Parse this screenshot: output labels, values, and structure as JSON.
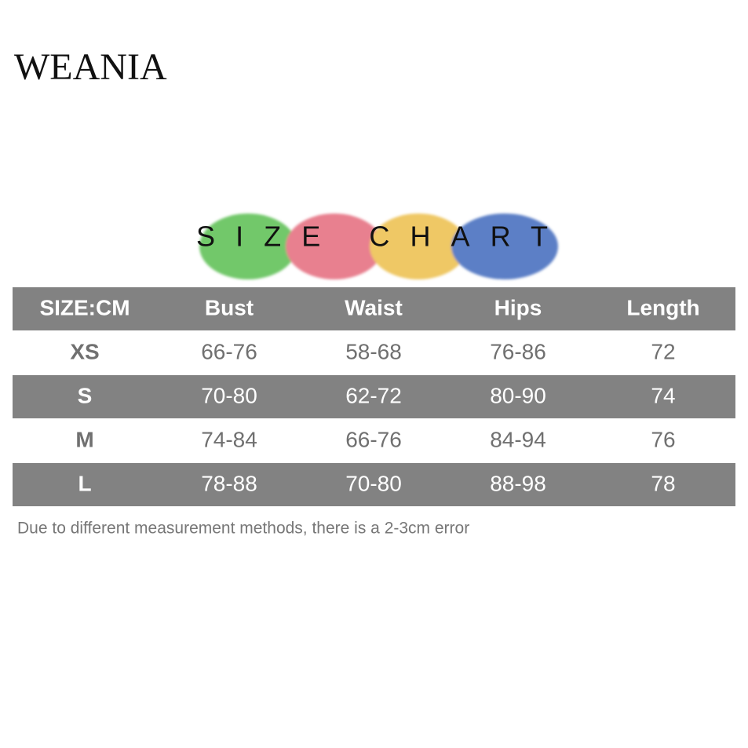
{
  "header": {
    "brand": "WEANIA",
    "banner": "SIZE CHART"
  },
  "table": {
    "columns": [
      "SIZE:CM",
      "Bust",
      "Waist",
      "Hips",
      "Length"
    ],
    "rows": [
      [
        "XS",
        "66-76",
        "58-68",
        "76-86",
        "72"
      ],
      [
        "S",
        "70-80",
        "62-72",
        "80-90",
        "74"
      ],
      [
        "M",
        "74-84",
        "66-76",
        "84-94",
        "76"
      ],
      [
        "L",
        "78-88",
        "70-80",
        "88-98",
        "78"
      ]
    ]
  },
  "note": "Due to different measurement methods, there is a 2-3cm error"
}
